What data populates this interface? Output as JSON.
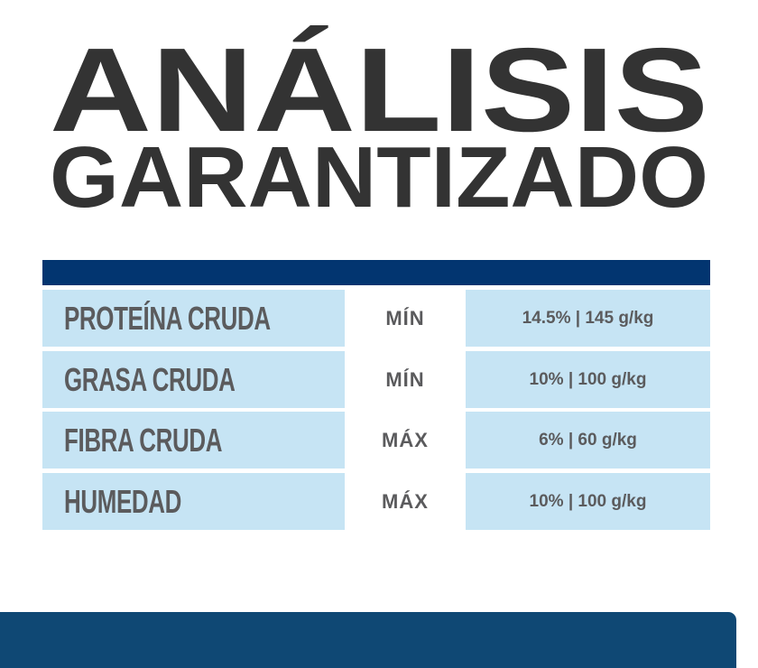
{
  "title": {
    "line1": "ANÁLISIS",
    "line2": "GARANTIZADO"
  },
  "colors": {
    "title": "#333333",
    "header_bar": "#023570",
    "cell_bg": "#c6e4f4",
    "text": "#5b5b5d",
    "bottom_panel": "#0f4874"
  },
  "table": {
    "rows": [
      {
        "nutrient": "PROTEÍNA CRUDA",
        "qualifier": "MÍN",
        "value": "14.5% | 145 g/kg"
      },
      {
        "nutrient": "GRASA CRUDA",
        "qualifier": "MÍN",
        "value": "10% | 100 g/kg"
      },
      {
        "nutrient": "FIBRA CRUDA",
        "qualifier": "MÁX",
        "value": "6% | 60 g/kg"
      },
      {
        "nutrient": "HUMEDAD",
        "qualifier": "MÁX",
        "value": "10% | 100 g/kg"
      }
    ]
  }
}
